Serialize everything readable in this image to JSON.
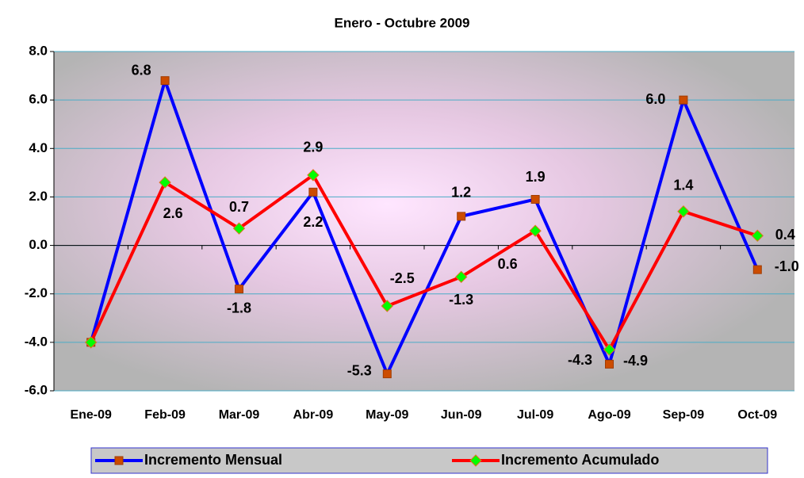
{
  "chart_data": {
    "type": "line",
    "title": "Enero - Octubre 2009",
    "categories": [
      "Ene-09",
      "Feb-09",
      "Mar-09",
      "Abr-09",
      "May-09",
      "Jun-09",
      "Jul-09",
      "Ago-09",
      "Sep-09",
      "Oct-09"
    ],
    "series": [
      {
        "name": "Incremento Mensual",
        "color": "#0000ff",
        "marker_color": "#cc4c00",
        "marker": "square",
        "values": [
          -4.0,
          6.8,
          -1.8,
          2.2,
          -5.3,
          1.2,
          1.9,
          -4.9,
          6.0,
          -1.0
        ],
        "value_labels": [
          null,
          "6.8",
          "-1.8",
          "2.2",
          "-5.3",
          "1.2",
          "1.9",
          "-4.9",
          "6.0",
          "-1.0"
        ]
      },
      {
        "name": "Incremento Acumulado",
        "color": "#ff0000",
        "marker_color": "#00ff00",
        "marker": "diamond",
        "values": [
          -4.0,
          2.6,
          0.7,
          2.9,
          -2.5,
          -1.3,
          0.6,
          -4.3,
          1.4,
          0.4
        ],
        "value_labels": [
          null,
          "2.6",
          "0.7",
          "2.9",
          "-2.5",
          "-1.3",
          "0.6",
          "-4.3",
          "1.4",
          "0.4"
        ]
      }
    ],
    "ylim": [
      -6,
      8
    ],
    "yticks": [
      {
        "value": -6,
        "label": "-6.0"
      },
      {
        "value": -4,
        "label": "-4.0"
      },
      {
        "value": -2,
        "label": "-2.0"
      },
      {
        "value": 0,
        "label": "0.0"
      },
      {
        "value": 2,
        "label": "2.0"
      },
      {
        "value": 4,
        "label": "4.0"
      },
      {
        "value": 6,
        "label": "6.0"
      },
      {
        "value": 8,
        "label": "8.0"
      }
    ],
    "grid": true
  }
}
